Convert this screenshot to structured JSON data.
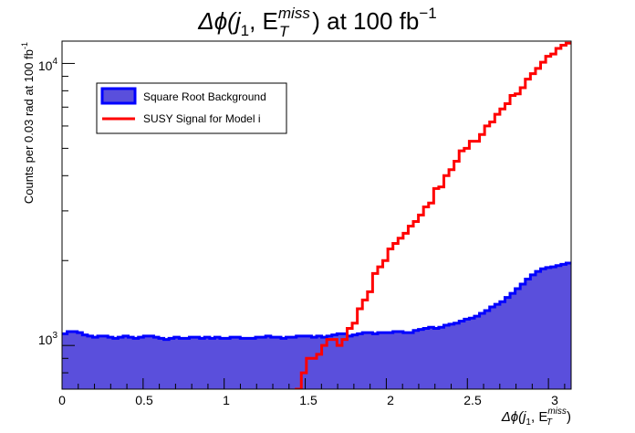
{
  "chart_data": {
    "type": "histogram",
    "title": {
      "prefix": "Δϕ(j",
      "sub1": "1",
      "mid": ", E",
      "sup_miss": "miss",
      "sub_t": "T",
      "suffix": ") at 100 fb",
      "sup_exp": "−1"
    },
    "xlabel": {
      "prefix": "Δϕ(j",
      "sub1": "1",
      "mid": ", E",
      "sup_miss": "miss",
      "sub_t": "T",
      "suffix": ")"
    },
    "ylabel": "Counts per 0.03 rad at 100 fb",
    "ylabel_exp": "-1",
    "x_range": [
      0,
      3.14
    ],
    "y_range": [
      700,
      12000
    ],
    "y_scale": "log",
    "bin_width": 0.0314,
    "x_ticks": [
      "0",
      "0.5",
      "1",
      "1.5",
      "2",
      "2.5",
      "3"
    ],
    "x_tick_values": [
      0,
      0.5,
      1,
      1.5,
      2,
      2.5,
      3
    ],
    "y_tick_labels": [
      {
        "value": 1000,
        "base": "10",
        "exp": "3"
      },
      {
        "value": 10000,
        "base": "10",
        "exp": "4"
      }
    ],
    "legend_position": "top-left",
    "series": [
      {
        "name": "Square Root Background",
        "style": "filled",
        "fill_color": "#5a4fdc",
        "line_color": "#0000ff",
        "values": [
          1100,
          1120,
          1120,
          1110,
          1090,
          1080,
          1070,
          1080,
          1080,
          1070,
          1060,
          1070,
          1080,
          1070,
          1060,
          1070,
          1080,
          1080,
          1070,
          1060,
          1050,
          1060,
          1070,
          1060,
          1060,
          1070,
          1070,
          1060,
          1070,
          1060,
          1070,
          1060,
          1060,
          1070,
          1070,
          1060,
          1060,
          1060,
          1070,
          1070,
          1080,
          1070,
          1070,
          1060,
          1070,
          1070,
          1080,
          1080,
          1080,
          1070,
          1080,
          1070,
          1080,
          1090,
          1100,
          1100,
          1080,
          1090,
          1100,
          1110,
          1110,
          1100,
          1110,
          1110,
          1110,
          1120,
          1120,
          1110,
          1110,
          1130,
          1140,
          1150,
          1160,
          1150,
          1160,
          1180,
          1190,
          1200,
          1220,
          1240,
          1250,
          1270,
          1300,
          1330,
          1370,
          1400,
          1430,
          1480,
          1530,
          1590,
          1650,
          1720,
          1780,
          1830,
          1870,
          1890,
          1900,
          1920,
          1940,
          1960
        ]
      },
      {
        "name": "SUSY Signal for Model i",
        "style": "step",
        "line_color": "#ff0000",
        "values": [
          650,
          650,
          650,
          650,
          650,
          650,
          650,
          650,
          650,
          650,
          650,
          650,
          650,
          650,
          650,
          650,
          650,
          650,
          650,
          650,
          650,
          650,
          650,
          650,
          650,
          650,
          650,
          650,
          650,
          650,
          650,
          650,
          650,
          650,
          650,
          650,
          650,
          650,
          650,
          650,
          650,
          650,
          650,
          650,
          650,
          650,
          700,
          800,
          900,
          900,
          930,
          1000,
          1050,
          1050,
          1000,
          1050,
          1150,
          1200,
          1350,
          1450,
          1550,
          1800,
          1900,
          2000,
          2200,
          2300,
          2400,
          2500,
          2650,
          2750,
          2900,
          3100,
          3200,
          3600,
          3650,
          4000,
          4200,
          4500,
          4900,
          5000,
          5300,
          5300,
          5600,
          6000,
          6200,
          6600,
          6900,
          7200,
          7700,
          7800,
          8200,
          8800,
          9200,
          9600,
          10100,
          10600,
          10800,
          11300,
          11600,
          11800
        ]
      }
    ]
  }
}
